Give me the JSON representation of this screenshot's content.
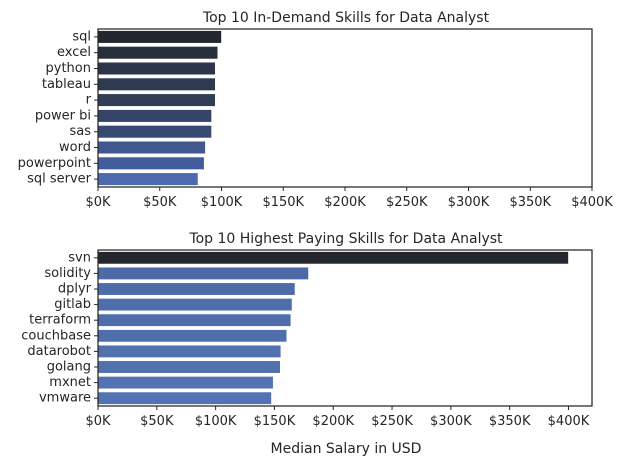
{
  "chart_data": [
    {
      "type": "bar",
      "orientation": "horizontal",
      "title": "Top 10 In-Demand Skills for Data Analyst",
      "xlabel": "",
      "ylabel": "",
      "categories": [
        "sql",
        "excel",
        "python",
        "tableau",
        "r",
        "power bi",
        "sas",
        "word",
        "powerpoint",
        "sql server"
      ],
      "values": [
        100000,
        97000,
        95000,
        95000,
        95000,
        92000,
        92000,
        87000,
        86000,
        81000
      ],
      "xlim": [
        0,
        400000
      ],
      "xticks": [
        0,
        50000,
        100000,
        150000,
        200000,
        250000,
        300000,
        350000,
        400000
      ],
      "xtick_labels": [
        "$0K",
        "$50K",
        "$100K",
        "$150K",
        "$200K",
        "$250K",
        "$300K",
        "$350K",
        "$400K"
      ],
      "colors": [
        "#23262c",
        "#272e3c",
        "#2c3549",
        "#2f3a52",
        "#303d57",
        "#35456a",
        "#384a71",
        "#405790",
        "#435c9b",
        "#4b6aaf"
      ]
    },
    {
      "type": "bar",
      "orientation": "horizontal",
      "title": "Top 10  Highest Paying Skills for Data Analyst",
      "xlabel": "Median Salary in USD",
      "ylabel": "",
      "categories": [
        "svn",
        "solidity",
        "dplyr",
        "gitlab",
        "terraform",
        "couchbase",
        "datarobot",
        "golang",
        "mxnet",
        "vmware"
      ],
      "values": [
        400000,
        179000,
        167500,
        165000,
        164000,
        160500,
        155500,
        155000,
        149000,
        147500
      ],
      "xlim": [
        0,
        420000
      ],
      "xticks": [
        0,
        50000,
        100000,
        150000,
        200000,
        250000,
        300000,
        350000,
        400000
      ],
      "xtick_labels": [
        "$0K",
        "$50K",
        "$100K",
        "$150K",
        "$200K",
        "$250K",
        "$300K",
        "$350K",
        "$400K"
      ],
      "colors": [
        "#23262c",
        "#4d6aa6",
        "#4e6ca9",
        "#4f6dab",
        "#4f6dab",
        "#506eac",
        "#5170ae",
        "#5170ae",
        "#5272b1",
        "#5373b3"
      ]
    }
  ]
}
